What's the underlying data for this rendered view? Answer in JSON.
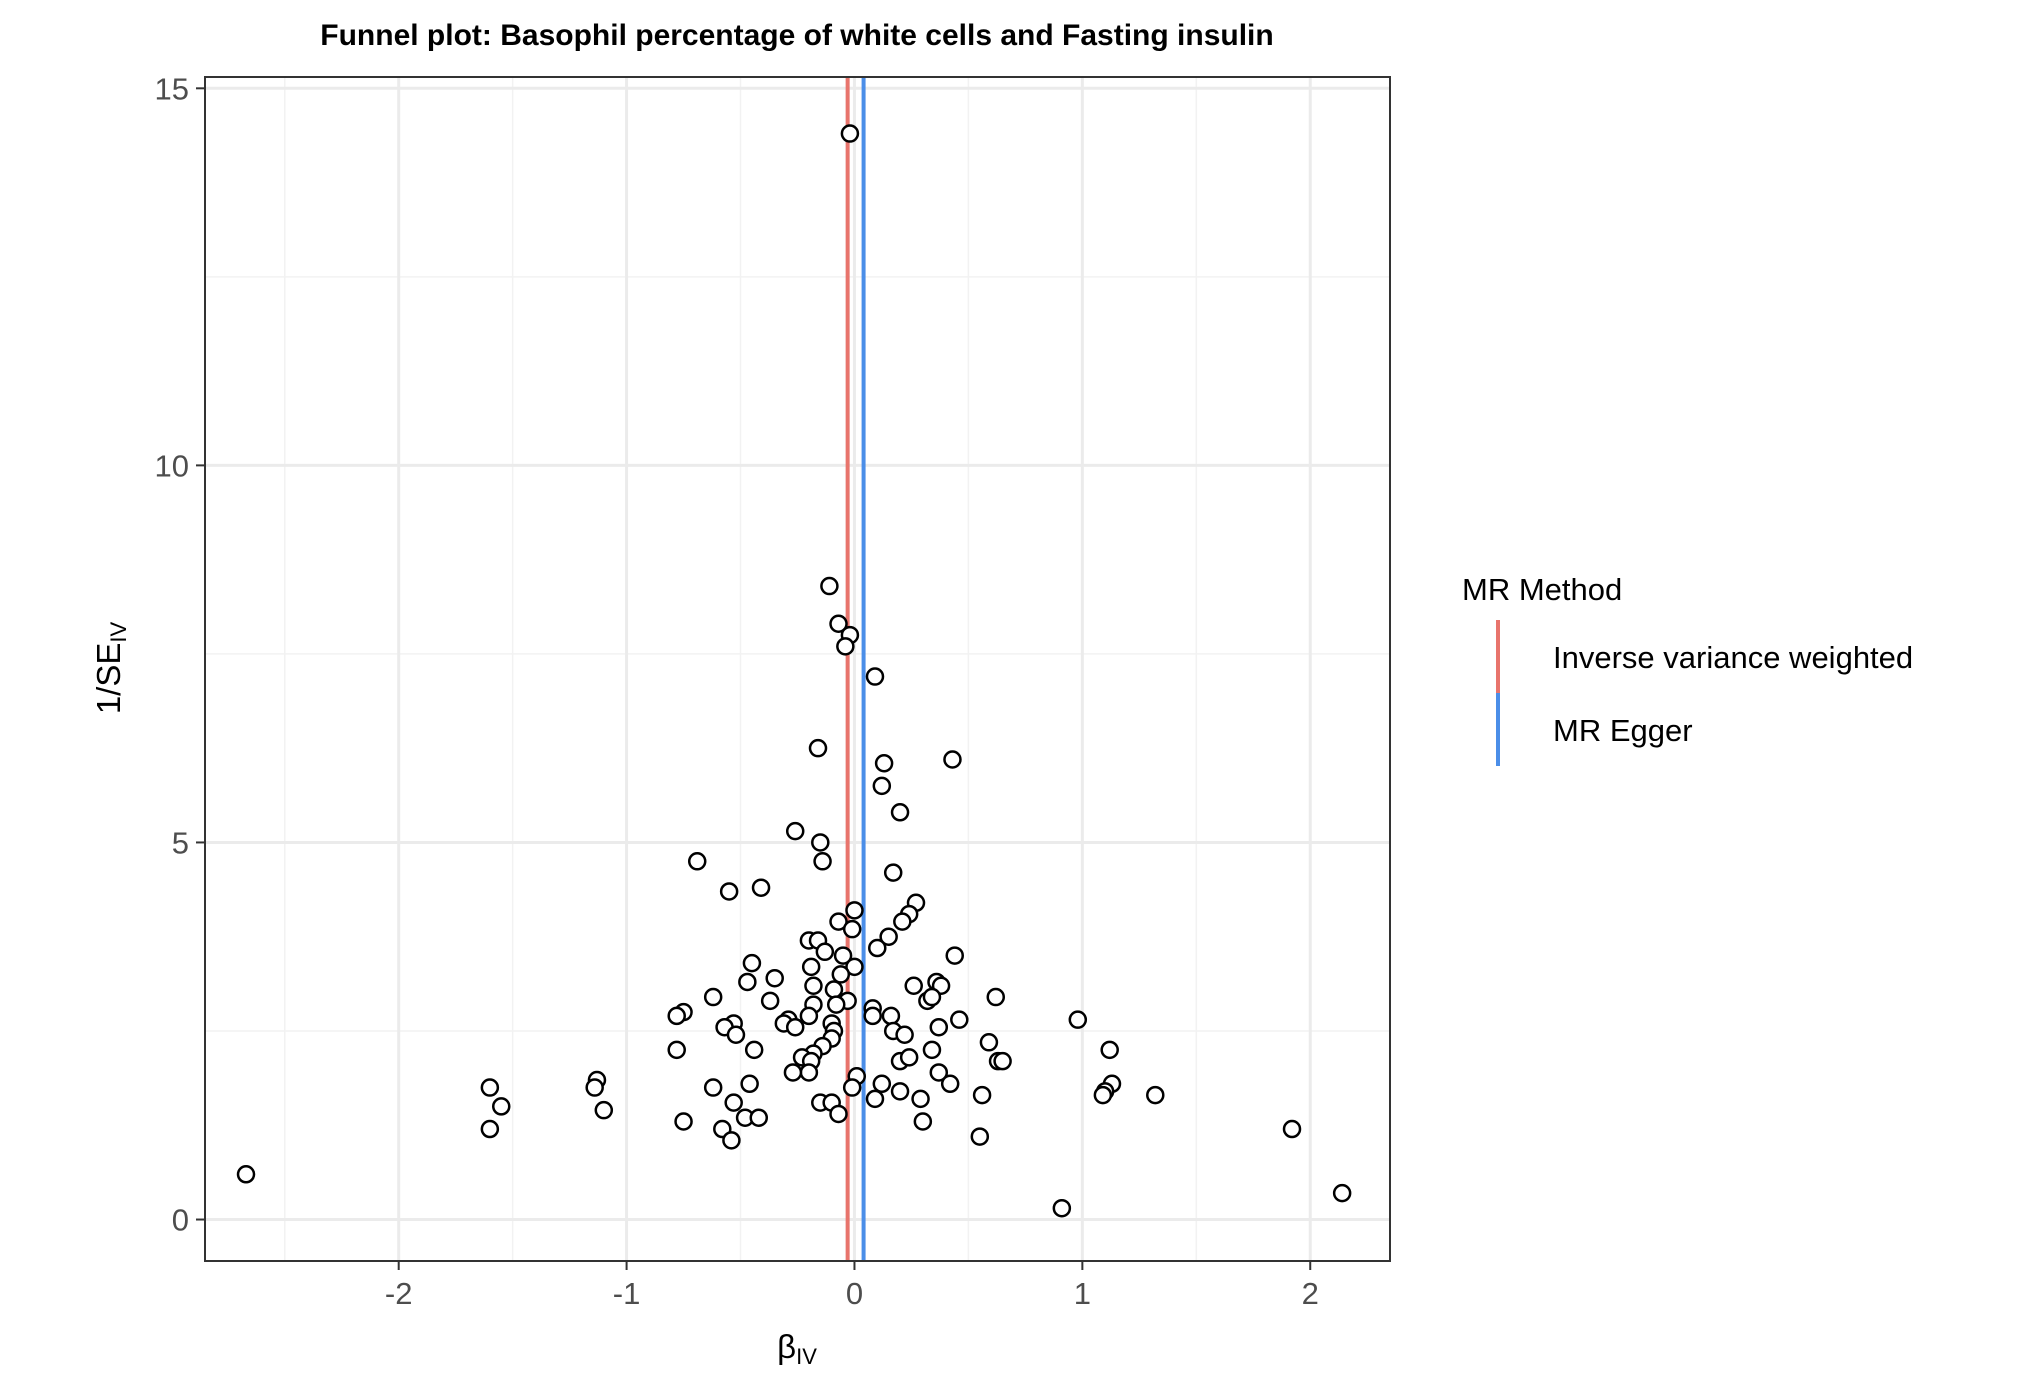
{
  "chart_data": {
    "type": "scatter",
    "title": "Funnel plot: Basophil percentage of white cells and Fasting insulin",
    "xlabel": {
      "main": "β",
      "sub": "IV"
    },
    "ylabel": {
      "main": "1/SE",
      "sub": "IV"
    },
    "xlim": [
      -2.85,
      2.35
    ],
    "ylim": [
      -0.55,
      15.15
    ],
    "x_ticks": [
      -2,
      -1,
      0,
      1,
      2
    ],
    "x_tick_labels": [
      "-2",
      "-1",
      "0",
      "1",
      "2"
    ],
    "y_ticks": [
      0,
      5,
      10,
      15
    ],
    "y_tick_labels": [
      "0",
      "5",
      "10",
      "15"
    ],
    "grid": true,
    "legend": {
      "title": "MR Method",
      "position": "right",
      "entries": [
        {
          "label": "Inverse variance weighted",
          "color": "#E8746C"
        },
        {
          "label": "MR Egger",
          "color": "#4B8EE8"
        }
      ]
    },
    "lines": [
      {
        "method": "Inverse variance weighted",
        "x": -0.03,
        "color": "#E8746C"
      },
      {
        "method": "MR Egger",
        "x": 0.04,
        "color": "#4B8EE8"
      }
    ],
    "points": [
      {
        "x": -0.02,
        "y": 14.4
      },
      {
        "x": -0.11,
        "y": 8.4
      },
      {
        "x": -0.07,
        "y": 7.9
      },
      {
        "x": -0.02,
        "y": 7.75
      },
      {
        "x": -0.04,
        "y": 7.6
      },
      {
        "x": 0.09,
        "y": 7.2
      },
      {
        "x": -0.16,
        "y": 6.25
      },
      {
        "x": 0.13,
        "y": 6.05
      },
      {
        "x": 0.43,
        "y": 6.1
      },
      {
        "x": 0.12,
        "y": 5.75
      },
      {
        "x": 0.2,
        "y": 5.4
      },
      {
        "x": -0.26,
        "y": 5.15
      },
      {
        "x": -0.15,
        "y": 5.0
      },
      {
        "x": -0.14,
        "y": 4.75
      },
      {
        "x": -0.69,
        "y": 4.75
      },
      {
        "x": 0.17,
        "y": 4.6
      },
      {
        "x": -0.41,
        "y": 4.4
      },
      {
        "x": -0.55,
        "y": 4.35
      },
      {
        "x": 0.27,
        "y": 4.2
      },
      {
        "x": 0.0,
        "y": 4.1
      },
      {
        "x": 0.24,
        "y": 4.05
      },
      {
        "x": 0.21,
        "y": 3.95
      },
      {
        "x": -0.07,
        "y": 3.95
      },
      {
        "x": -0.01,
        "y": 3.85
      },
      {
        "x": 0.15,
        "y": 3.75
      },
      {
        "x": -0.2,
        "y": 3.7
      },
      {
        "x": -0.16,
        "y": 3.7
      },
      {
        "x": 0.1,
        "y": 3.6
      },
      {
        "x": -0.13,
        "y": 3.55
      },
      {
        "x": -0.05,
        "y": 3.5
      },
      {
        "x": 0.44,
        "y": 3.5
      },
      {
        "x": -0.45,
        "y": 3.4
      },
      {
        "x": -0.19,
        "y": 3.35
      },
      {
        "x": 0.0,
        "y": 3.35
      },
      {
        "x": -0.06,
        "y": 3.25
      },
      {
        "x": -0.35,
        "y": 3.2
      },
      {
        "x": -0.47,
        "y": 3.15
      },
      {
        "x": 0.26,
        "y": 3.1
      },
      {
        "x": 0.36,
        "y": 3.15
      },
      {
        "x": -0.18,
        "y": 3.1
      },
      {
        "x": -0.09,
        "y": 3.05
      },
      {
        "x": 0.38,
        "y": 3.1
      },
      {
        "x": -0.62,
        "y": 2.95
      },
      {
        "x": 0.62,
        "y": 2.95
      },
      {
        "x": -0.37,
        "y": 2.9
      },
      {
        "x": -0.03,
        "y": 2.9
      },
      {
        "x": -0.08,
        "y": 2.85
      },
      {
        "x": 0.32,
        "y": 2.9
      },
      {
        "x": 0.34,
        "y": 2.95
      },
      {
        "x": -0.18,
        "y": 2.85
      },
      {
        "x": 0.08,
        "y": 2.8
      },
      {
        "x": -0.75,
        "y": 2.75
      },
      {
        "x": -0.78,
        "y": 2.7
      },
      {
        "x": -0.2,
        "y": 2.7
      },
      {
        "x": -0.29,
        "y": 2.65
      },
      {
        "x": 0.08,
        "y": 2.7
      },
      {
        "x": 0.16,
        "y": 2.7
      },
      {
        "x": 0.46,
        "y": 2.65
      },
      {
        "x": 0.98,
        "y": 2.65
      },
      {
        "x": -0.53,
        "y": 2.6
      },
      {
        "x": -0.31,
        "y": 2.6
      },
      {
        "x": -0.1,
        "y": 2.6
      },
      {
        "x": -0.57,
        "y": 2.55
      },
      {
        "x": -0.26,
        "y": 2.55
      },
      {
        "x": -0.09,
        "y": 2.5
      },
      {
        "x": 0.17,
        "y": 2.5
      },
      {
        "x": 0.37,
        "y": 2.55
      },
      {
        "x": -0.52,
        "y": 2.45
      },
      {
        "x": -0.1,
        "y": 2.4
      },
      {
        "x": 0.22,
        "y": 2.45
      },
      {
        "x": -0.14,
        "y": 2.3
      },
      {
        "x": 0.59,
        "y": 2.35
      },
      {
        "x": -0.78,
        "y": 2.25
      },
      {
        "x": -0.44,
        "y": 2.25
      },
      {
        "x": 0.34,
        "y": 2.25
      },
      {
        "x": 1.12,
        "y": 2.25
      },
      {
        "x": -0.18,
        "y": 2.2
      },
      {
        "x": -0.23,
        "y": 2.15
      },
      {
        "x": -0.19,
        "y": 2.1
      },
      {
        "x": 0.2,
        "y": 2.1
      },
      {
        "x": 0.24,
        "y": 2.15
      },
      {
        "x": 0.63,
        "y": 2.1
      },
      {
        "x": 0.65,
        "y": 2.1
      },
      {
        "x": -0.2,
        "y": 1.95
      },
      {
        "x": -0.27,
        "y": 1.95
      },
      {
        "x": 0.01,
        "y": 1.9
      },
      {
        "x": 0.37,
        "y": 1.95
      },
      {
        "x": -1.13,
        "y": 1.85
      },
      {
        "x": -0.46,
        "y": 1.8
      },
      {
        "x": 0.12,
        "y": 1.8
      },
      {
        "x": 0.42,
        "y": 1.8
      },
      {
        "x": 1.13,
        "y": 1.8
      },
      {
        "x": -1.6,
        "y": 1.75
      },
      {
        "x": -1.14,
        "y": 1.75
      },
      {
        "x": -0.62,
        "y": 1.75
      },
      {
        "x": -0.01,
        "y": 1.75
      },
      {
        "x": 0.2,
        "y": 1.7
      },
      {
        "x": 1.1,
        "y": 1.7
      },
      {
        "x": 1.09,
        "y": 1.65
      },
      {
        "x": 1.32,
        "y": 1.65
      },
      {
        "x": 0.56,
        "y": 1.65
      },
      {
        "x": 0.09,
        "y": 1.6
      },
      {
        "x": 0.29,
        "y": 1.6
      },
      {
        "x": -0.53,
        "y": 1.55
      },
      {
        "x": -0.15,
        "y": 1.55
      },
      {
        "x": -0.1,
        "y": 1.55
      },
      {
        "x": -1.55,
        "y": 1.5
      },
      {
        "x": -1.1,
        "y": 1.45
      },
      {
        "x": -0.07,
        "y": 1.4
      },
      {
        "x": -0.48,
        "y": 1.35
      },
      {
        "x": -0.42,
        "y": 1.35
      },
      {
        "x": -0.75,
        "y": 1.3
      },
      {
        "x": 0.3,
        "y": 1.3
      },
      {
        "x": -1.6,
        "y": 1.2
      },
      {
        "x": -0.58,
        "y": 1.2
      },
      {
        "x": 1.92,
        "y": 1.2
      },
      {
        "x": 0.55,
        "y": 1.1
      },
      {
        "x": -0.54,
        "y": 1.05
      },
      {
        "x": -2.67,
        "y": 0.6
      },
      {
        "x": 2.14,
        "y": 0.35
      },
      {
        "x": 0.91,
        "y": 0.15
      }
    ]
  }
}
